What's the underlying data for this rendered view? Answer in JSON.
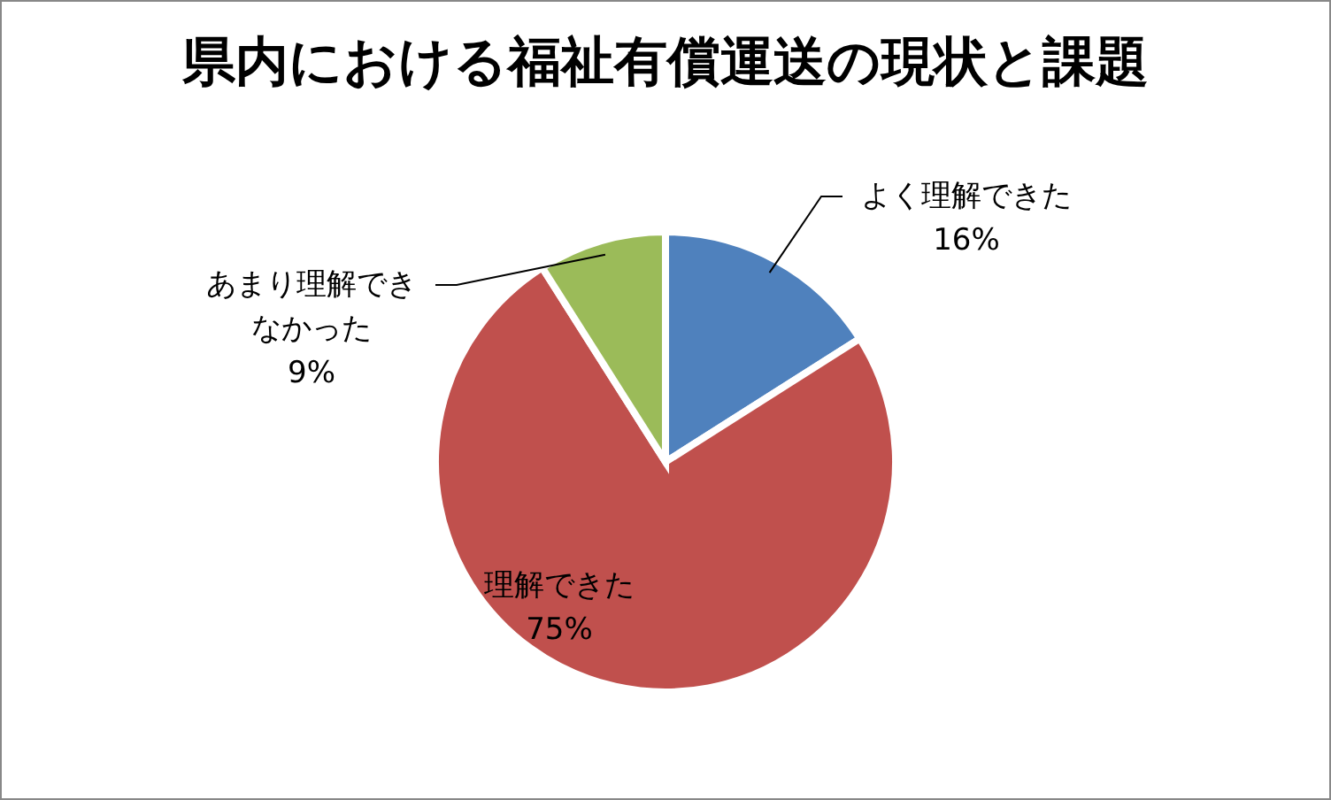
{
  "chart_data": {
    "type": "pie",
    "title": "県内における福祉有償運送の現状と課題",
    "categories": [
      "よく理解できた",
      "理解できた",
      "あまり理解できなかった"
    ],
    "values": [
      16,
      75,
      9
    ],
    "value_labels": [
      "16%",
      "75%",
      "9%"
    ],
    "colors": [
      "#4f81bd",
      "#c0504d",
      "#9bbb59"
    ],
    "legend": false
  }
}
